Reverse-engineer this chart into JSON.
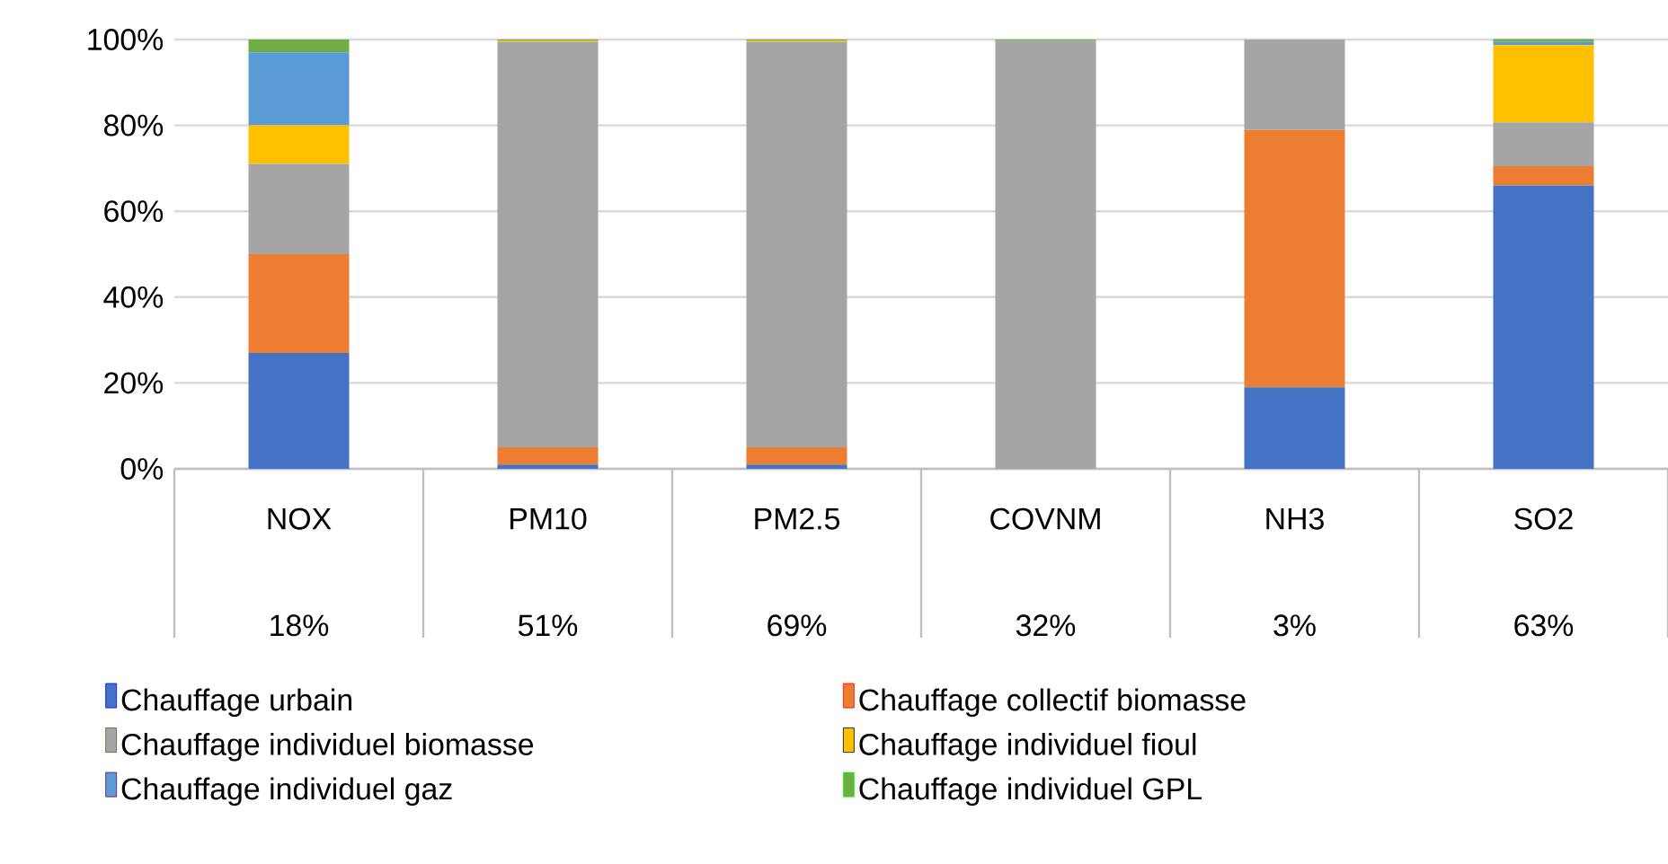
{
  "chart_data": {
    "type": "bar",
    "stacked": true,
    "categories": [
      "NOX",
      "PM10",
      "PM2.5",
      "COVNM",
      "NH3",
      "SO2"
    ],
    "series": [
      {
        "name": "Chauffage urbain",
        "color": "#4472c4",
        "values": [
          27,
          1,
          1,
          0,
          19,
          66
        ]
      },
      {
        "name": "Chauffage collectif biomasse",
        "color": "#ed7d31",
        "values": [
          23,
          4,
          4,
          0,
          60,
          4.5
        ]
      },
      {
        "name": "Chauffage individuel biomasse",
        "color": "#a5a5a5",
        "values": [
          21,
          94.5,
          94.5,
          99.7,
          21,
          10.2
        ]
      },
      {
        "name": "Chauffage individuel fioul",
        "color": "#ffc000",
        "values": [
          9,
          0.3,
          0.3,
          0,
          0,
          18
        ]
      },
      {
        "name": "Chauffage individuel gaz",
        "color": "#5b9bd5",
        "values": [
          17,
          0,
          0,
          0,
          0,
          0.7
        ]
      },
      {
        "name": "Chauffage individuel GPL",
        "color": "#70ad47",
        "values": [
          3,
          0.2,
          0.2,
          0.3,
          0,
          0.7
        ]
      }
    ],
    "ylim": [
      0,
      100
    ],
    "yticks": [
      {
        "value": 0,
        "label": "0%"
      },
      {
        "value": 20,
        "label": "20%"
      },
      {
        "value": 40,
        "label": "40%"
      },
      {
        "value": 60,
        "label": "60%"
      },
      {
        "value": 80,
        "label": "80%"
      },
      {
        "value": 100,
        "label": "100%"
      }
    ],
    "annotations": [
      "18%",
      "51%",
      "69%",
      "32%",
      "3%",
      "63%"
    ],
    "grid": "y",
    "legend": "bottom"
  }
}
